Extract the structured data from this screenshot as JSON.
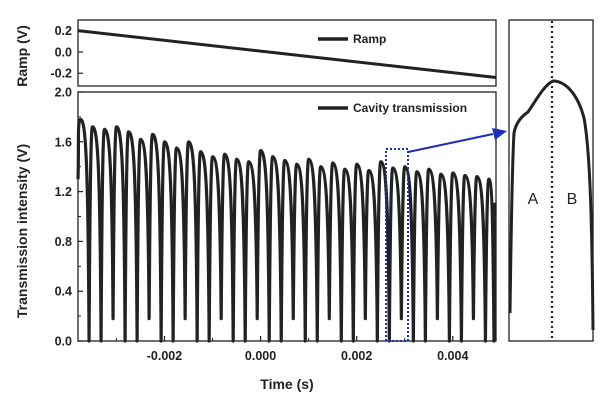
{
  "chart_data": [
    {
      "type": "line",
      "panel": "top",
      "xlim": [
        -0.0038,
        0.0049
      ],
      "ylim": [
        -0.32,
        0.3
      ],
      "ylabel": "Ramp (V)",
      "yticks": [
        "0.2",
        "0.0",
        "-0.2"
      ],
      "ytick_values": [
        0.2,
        0.0,
        -0.2
      ],
      "series": [
        {
          "name": "Ramp",
          "x": [
            -0.0038,
            0.0049
          ],
          "y": [
            0.2,
            -0.24
          ]
        }
      ],
      "legend_position": "top-right"
    },
    {
      "type": "line",
      "panel": "bottom",
      "xlim": [
        -0.0038,
        0.0049
      ],
      "ylim": [
        0.0,
        2.0
      ],
      "xlabel": "Time (s)",
      "ylabel": "Transmission intensity (V)",
      "xticks": [
        "-0.002",
        "0.000",
        "0.002",
        "0.004"
      ],
      "xtick_values": [
        -0.002,
        0.0,
        0.002,
        0.004
      ],
      "yticks": [
        "0.0",
        "0.4",
        "0.8",
        "1.2",
        "1.6",
        "2.0"
      ],
      "ytick_values": [
        0.0,
        0.4,
        0.8,
        1.2,
        1.6,
        2.0
      ],
      "series": [
        {
          "name": "Cavity transmission",
          "peak_times": [
            -0.00375,
            -0.0035,
            -0.00325,
            -0.003,
            -0.00275,
            -0.0025,
            -0.00225,
            -0.002,
            -0.00175,
            -0.0015,
            -0.00125,
            -0.001,
            -0.00075,
            -0.0005,
            -0.00025,
            0.0,
            0.00025,
            0.0005,
            0.00075,
            0.001,
            0.00125,
            0.0015,
            0.00175,
            0.002,
            0.00225,
            0.0025,
            0.00275,
            0.003,
            0.00325,
            0.0035,
            0.00375,
            0.004,
            0.00425,
            0.0045,
            0.00475
          ],
          "peak_values": [
            1.78,
            1.72,
            1.7,
            1.72,
            1.68,
            1.62,
            1.66,
            1.6,
            1.55,
            1.6,
            1.52,
            1.48,
            1.5,
            1.46,
            1.44,
            1.53,
            1.48,
            1.45,
            1.42,
            1.46,
            1.4,
            1.43,
            1.38,
            1.42,
            1.37,
            1.44,
            1.39,
            1.4,
            1.36,
            1.38,
            1.34,
            1.35,
            1.33,
            1.32,
            1.3
          ],
          "minimum": 0.0,
          "shallow_dip_indices": [
            2,
            5,
            8,
            11,
            14,
            17,
            20,
            23,
            26,
            29,
            32
          ],
          "shallow_dip_value": 0.18
        }
      ],
      "legend_position": "top-right",
      "zoom_box_x": [
        0.0027,
        0.003
      ]
    },
    {
      "type": "line",
      "panel": "inset",
      "description_labels": [
        "A",
        "B"
      ]
    }
  ],
  "labels": {
    "ramp_ylabel": "Ramp (V)",
    "trans_ylabel": "Transmission intensity (V)",
    "xlabel": "Time (s)",
    "ramp_legend": "Ramp",
    "trans_legend": "Cavity transmission",
    "zone_a": "A",
    "zone_b": "B"
  },
  "colors": {
    "line": "#222222",
    "zoom": "#1a2fbf"
  }
}
